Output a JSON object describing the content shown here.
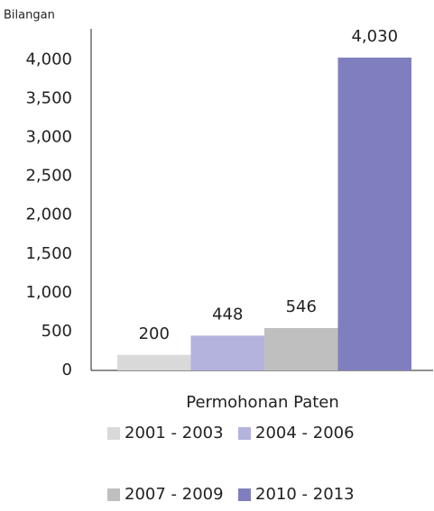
{
  "chart_data": {
    "type": "bar",
    "y_label": "Bilangan",
    "categories": [
      "Permohonan Paten"
    ],
    "series": [
      {
        "name": "2001 - 2003",
        "color": "#d9d9d9",
        "values": [
          200
        ],
        "value_labels": [
          "200"
        ]
      },
      {
        "name": "2004 - 2006",
        "color": "#b3b3de",
        "values": [
          448
        ],
        "value_labels": [
          "448"
        ]
      },
      {
        "name": "2007 - 2009",
        "color": "#bfbfbf",
        "values": [
          546
        ],
        "value_labels": [
          "546"
        ]
      },
      {
        "name": "2010 - 2013",
        "color": "#7f7fbf",
        "values": [
          4030
        ],
        "value_labels": [
          "4,030"
        ]
      }
    ],
    "ylim": [
      0,
      4400
    ],
    "yticks": [
      0,
      500,
      {
        "value": 1000,
        "label": "1,000"
      },
      {
        "value": 1500,
        "label": "1,500"
      },
      {
        "value": 2000,
        "label": "2,000"
      },
      {
        "value": 2500,
        "label": "2,500"
      },
      {
        "value": 3000,
        "label": "3,000"
      },
      {
        "value": 3500,
        "label": "3,500"
      },
      {
        "value": 4000,
        "label": "4,000"
      }
    ],
    "grid": false,
    "legend": "bottom"
  }
}
